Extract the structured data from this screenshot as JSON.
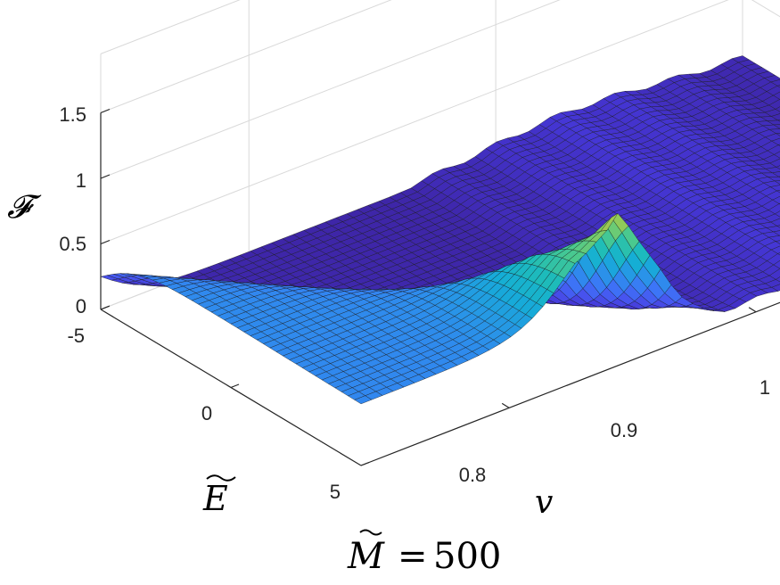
{
  "chart_data": {
    "type": "surface",
    "zlabel": "𝓕",
    "xlabel": "v",
    "ylabel": "E",
    "title": "M = 500",
    "title_parts": {
      "symbol": "M",
      "equals": "=",
      "value": "500"
    },
    "colormap": "parula",
    "edge_color": "#1a1a1a",
    "z_ticks": [
      "0",
      "0.5",
      "1",
      "1.5"
    ],
    "y_ticks": [
      "-5",
      "0",
      "5"
    ],
    "x_ticks": [
      "0.8",
      "0.9",
      "1"
    ],
    "z_range": [
      0,
      1.5
    ],
    "y_range": [
      -5,
      5
    ],
    "x_range": [
      0.74,
      1.0
    ],
    "grid": true,
    "v": [
      0.74,
      0.76,
      0.78,
      0.8,
      0.82,
      0.84,
      0.86,
      0.88,
      0.9,
      0.92,
      0.94,
      0.96,
      0.98,
      1.0
    ],
    "E": [
      -5,
      -4,
      -3,
      -2,
      -1,
      0,
      1,
      2,
      3,
      4,
      5
    ],
    "F_at_E_minus5": [
      0.5,
      0.52,
      0.55,
      0.62,
      0.98,
      1.38,
      1.42,
      1.32,
      1.18,
      0.98,
      0.74,
      0.5,
      0.28,
      0.02
    ],
    "F_at_E_5": [
      0.0,
      0.0,
      0.0,
      0.0,
      0.0,
      0.0,
      0.0,
      0.01,
      0.1,
      0.12,
      0.1,
      0.07,
      0.05,
      0.02
    ]
  }
}
